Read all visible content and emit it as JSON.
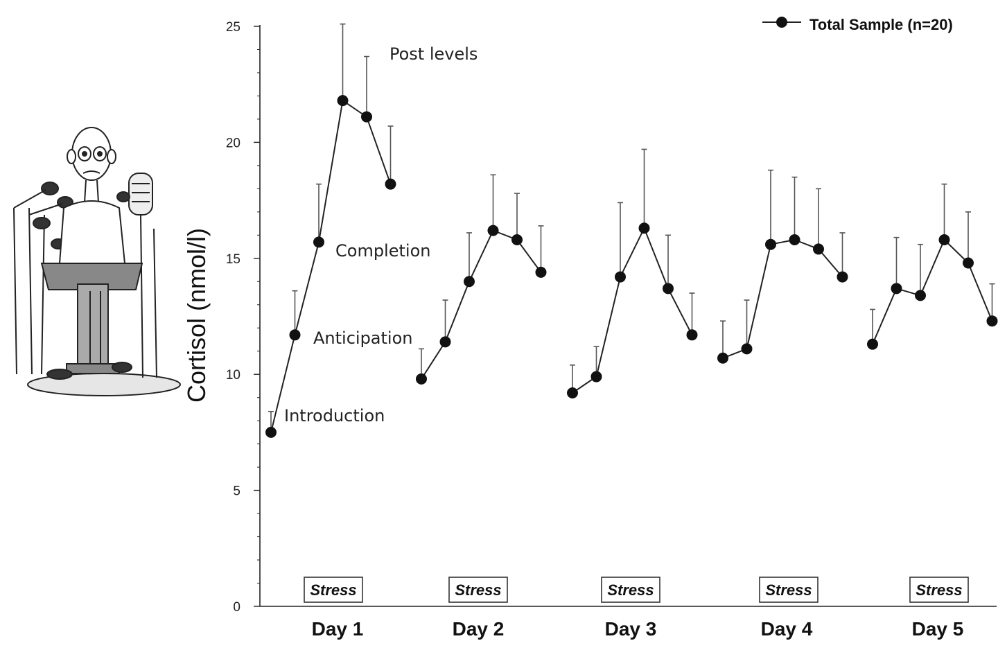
{
  "chart_data": {
    "type": "line",
    "ylabel": "Cortisol (nmol/l)",
    "ylim": [
      0,
      25
    ],
    "yticks": [
      0,
      5,
      10,
      15,
      20,
      25
    ],
    "categories": [
      "Day 1",
      "Day 2",
      "Day 3",
      "Day 4",
      "Day 5"
    ],
    "stress_label": "Stress",
    "legend": {
      "label": "Total Sample (n=20)",
      "position": "top-right"
    },
    "annotations": [
      "Introduction",
      "Anticipation",
      "Completion",
      "Post levels"
    ],
    "series": [
      {
        "name": "Total Sample (n=20)",
        "days": [
          {
            "day": "Day 1",
            "values": [
              7.5,
              11.7,
              15.7,
              21.8,
              21.1,
              18.2
            ],
            "error": [
              0.9,
              1.9,
              2.5,
              3.3,
              2.6,
              2.5
            ]
          },
          {
            "day": "Day 2",
            "values": [
              9.8,
              11.4,
              14.0,
              16.2,
              15.8,
              14.4
            ],
            "error": [
              1.3,
              1.8,
              2.1,
              2.4,
              2.0,
              2.0
            ]
          },
          {
            "day": "Day 3",
            "values": [
              9.2,
              9.9,
              14.2,
              16.3,
              13.7,
              11.7
            ],
            "error": [
              1.2,
              1.3,
              3.2,
              3.4,
              2.3,
              1.8
            ]
          },
          {
            "day": "Day 4",
            "values": [
              10.7,
              11.1,
              15.6,
              15.8,
              15.4,
              14.2
            ],
            "error": [
              1.6,
              2.1,
              3.2,
              2.7,
              2.6,
              1.9
            ]
          },
          {
            "day": "Day 5",
            "values": [
              11.3,
              13.7,
              13.4,
              15.8,
              14.8,
              12.3
            ],
            "error": [
              1.5,
              2.2,
              2.2,
              2.4,
              2.2,
              1.6
            ]
          }
        ]
      }
    ]
  }
}
